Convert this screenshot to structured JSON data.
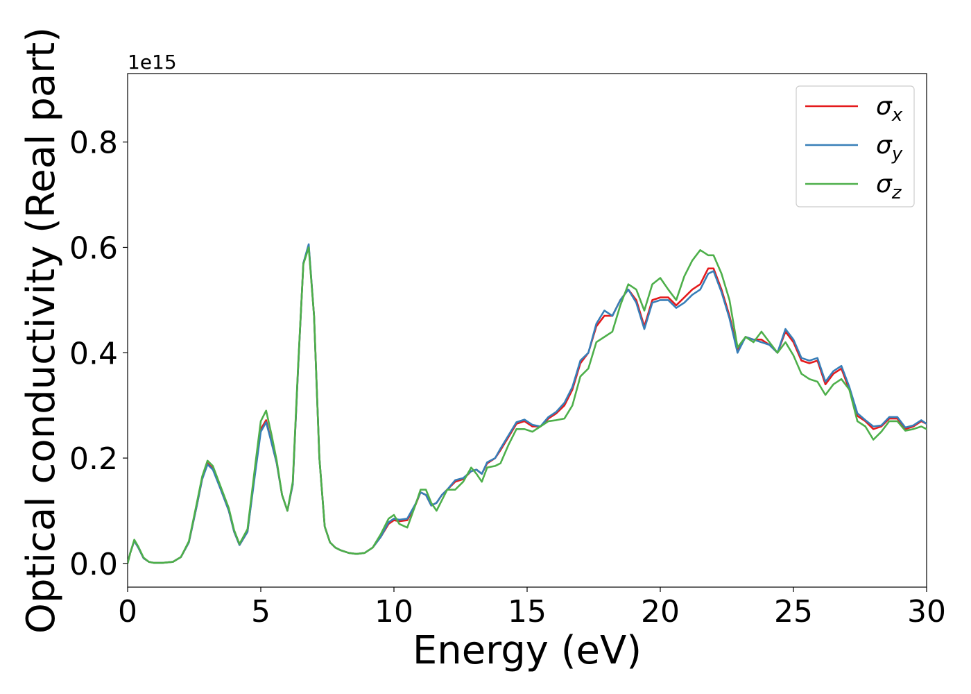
{
  "chart_data": {
    "type": "line",
    "xlabel": "Energy (eV)",
    "ylabel": "Optical conductivity (Real part)",
    "y_offset_label": "1e15",
    "xlim": [
      0,
      30
    ],
    "ylim": [
      -0.045,
      0.93
    ],
    "xticks": [
      0,
      5,
      10,
      15,
      20,
      25,
      30
    ],
    "xtick_labels": [
      "0",
      "5",
      "10",
      "15",
      "20",
      "25",
      "30"
    ],
    "yticks": [
      0.0,
      0.2,
      0.4,
      0.6,
      0.8
    ],
    "ytick_labels": [
      "0.0",
      "0.2",
      "0.4",
      "0.6",
      "0.8"
    ],
    "grid": false,
    "legend_position": "top-right",
    "series": [
      {
        "name": "σx",
        "symbol": "σ",
        "subscript": "x",
        "color": "#e41a1c",
        "x": [
          0,
          0.1,
          0.25,
          0.4,
          0.6,
          0.8,
          1.0,
          1.3,
          1.7,
          2.0,
          2.3,
          2.6,
          2.8,
          3.0,
          3.2,
          3.5,
          3.8,
          4.0,
          4.2,
          4.5,
          4.8,
          5.0,
          5.2,
          5.4,
          5.6,
          5.8,
          6.0,
          6.2,
          6.4,
          6.6,
          6.8,
          7.0,
          7.2,
          7.4,
          7.6,
          7.8,
          8.0,
          8.3,
          8.6,
          8.9,
          9.2,
          9.5,
          9.8,
          10.0,
          10.2,
          10.5,
          10.8,
          11.0,
          11.2,
          11.4,
          11.6,
          11.8,
          12.0,
          12.3,
          12.6,
          12.9,
          13.1,
          13.3,
          13.5,
          13.8,
          14.0,
          14.3,
          14.6,
          14.9,
          15.2,
          15.5,
          15.8,
          16.1,
          16.4,
          16.7,
          17.0,
          17.3,
          17.6,
          17.9,
          18.2,
          18.5,
          18.8,
          19.1,
          19.4,
          19.7,
          20.0,
          20.3,
          20.6,
          20.9,
          21.2,
          21.5,
          21.8,
          22.0,
          22.3,
          22.6,
          22.9,
          23.2,
          23.5,
          23.8,
          24.1,
          24.4,
          24.7,
          25.0,
          25.3,
          25.6,
          25.9,
          26.2,
          26.5,
          26.8,
          27.1,
          27.4,
          27.7,
          28.0,
          28.3,
          28.6,
          28.9,
          29.2,
          29.5,
          29.8,
          30.0
        ],
        "y": [
          0.0,
          0.02,
          0.043,
          0.03,
          0.01,
          0.003,
          0.001,
          0.001,
          0.003,
          0.012,
          0.04,
          0.11,
          0.16,
          0.19,
          0.18,
          0.14,
          0.1,
          0.06,
          0.035,
          0.06,
          0.18,
          0.255,
          0.272,
          0.23,
          0.19,
          0.13,
          0.1,
          0.15,
          0.37,
          0.57,
          0.603,
          0.47,
          0.2,
          0.07,
          0.04,
          0.03,
          0.025,
          0.02,
          0.018,
          0.02,
          0.03,
          0.05,
          0.075,
          0.082,
          0.08,
          0.082,
          0.11,
          0.135,
          0.13,
          0.11,
          0.115,
          0.13,
          0.14,
          0.155,
          0.16,
          0.175,
          0.178,
          0.17,
          0.19,
          0.2,
          0.215,
          0.24,
          0.265,
          0.27,
          0.26,
          0.26,
          0.275,
          0.285,
          0.3,
          0.33,
          0.38,
          0.4,
          0.45,
          0.47,
          0.47,
          0.5,
          0.52,
          0.5,
          0.45,
          0.5,
          0.505,
          0.505,
          0.49,
          0.505,
          0.52,
          0.53,
          0.56,
          0.56,
          0.52,
          0.47,
          0.405,
          0.43,
          0.425,
          0.425,
          0.415,
          0.4,
          0.44,
          0.42,
          0.385,
          0.38,
          0.385,
          0.34,
          0.36,
          0.37,
          0.33,
          0.28,
          0.27,
          0.255,
          0.26,
          0.275,
          0.275,
          0.255,
          0.26,
          0.27,
          0.265
        ]
      },
      {
        "name": "σy",
        "symbol": "σ",
        "subscript": "y",
        "color": "#377eb8",
        "x": [
          0,
          0.1,
          0.25,
          0.4,
          0.6,
          0.8,
          1.0,
          1.3,
          1.7,
          2.0,
          2.3,
          2.6,
          2.8,
          3.0,
          3.2,
          3.5,
          3.8,
          4.0,
          4.2,
          4.5,
          4.8,
          5.0,
          5.2,
          5.4,
          5.6,
          5.8,
          6.0,
          6.2,
          6.4,
          6.6,
          6.8,
          7.0,
          7.2,
          7.4,
          7.6,
          7.8,
          8.0,
          8.3,
          8.6,
          8.9,
          9.2,
          9.5,
          9.8,
          10.0,
          10.2,
          10.5,
          10.8,
          11.0,
          11.2,
          11.4,
          11.6,
          11.8,
          12.0,
          12.3,
          12.6,
          12.9,
          13.1,
          13.3,
          13.5,
          13.8,
          14.0,
          14.3,
          14.6,
          14.9,
          15.2,
          15.5,
          15.8,
          16.1,
          16.4,
          16.7,
          17.0,
          17.3,
          17.6,
          17.9,
          18.2,
          18.5,
          18.8,
          19.1,
          19.4,
          19.7,
          20.0,
          20.3,
          20.6,
          20.9,
          21.2,
          21.5,
          21.8,
          22.0,
          22.3,
          22.6,
          22.9,
          23.2,
          23.5,
          23.8,
          24.1,
          24.4,
          24.7,
          25.0,
          25.3,
          25.6,
          25.9,
          26.2,
          26.5,
          26.8,
          27.1,
          27.4,
          27.7,
          28.0,
          28.3,
          28.6,
          28.9,
          29.2,
          29.5,
          29.8,
          30.0
        ],
        "y": [
          0.0,
          0.02,
          0.043,
          0.03,
          0.01,
          0.003,
          0.001,
          0.001,
          0.003,
          0.012,
          0.04,
          0.11,
          0.16,
          0.188,
          0.178,
          0.14,
          0.1,
          0.06,
          0.035,
          0.06,
          0.175,
          0.25,
          0.268,
          0.23,
          0.19,
          0.13,
          0.1,
          0.15,
          0.37,
          0.57,
          0.606,
          0.47,
          0.2,
          0.07,
          0.04,
          0.03,
          0.025,
          0.02,
          0.018,
          0.02,
          0.03,
          0.05,
          0.078,
          0.085,
          0.083,
          0.085,
          0.112,
          0.135,
          0.13,
          0.11,
          0.115,
          0.13,
          0.14,
          0.158,
          0.162,
          0.175,
          0.178,
          0.17,
          0.192,
          0.2,
          0.218,
          0.243,
          0.268,
          0.273,
          0.263,
          0.26,
          0.278,
          0.288,
          0.305,
          0.335,
          0.385,
          0.4,
          0.455,
          0.48,
          0.47,
          0.5,
          0.52,
          0.495,
          0.445,
          0.495,
          0.5,
          0.5,
          0.485,
          0.495,
          0.51,
          0.52,
          0.55,
          0.555,
          0.515,
          0.465,
          0.4,
          0.43,
          0.425,
          0.42,
          0.415,
          0.4,
          0.445,
          0.425,
          0.39,
          0.385,
          0.39,
          0.345,
          0.365,
          0.375,
          0.335,
          0.285,
          0.272,
          0.26,
          0.262,
          0.278,
          0.278,
          0.258,
          0.262,
          0.272,
          0.265
        ]
      },
      {
        "name": "σz",
        "symbol": "σ",
        "subscript": "z",
        "color": "#4daf4a",
        "x": [
          0,
          0.1,
          0.25,
          0.4,
          0.6,
          0.8,
          1.0,
          1.3,
          1.7,
          2.0,
          2.3,
          2.6,
          2.8,
          3.0,
          3.2,
          3.5,
          3.8,
          4.0,
          4.2,
          4.5,
          4.8,
          5.0,
          5.2,
          5.4,
          5.6,
          5.8,
          6.0,
          6.2,
          6.4,
          6.6,
          6.8,
          7.0,
          7.2,
          7.4,
          7.6,
          7.8,
          8.0,
          8.3,
          8.6,
          8.9,
          9.2,
          9.5,
          9.8,
          10.0,
          10.2,
          10.5,
          10.8,
          11.0,
          11.2,
          11.4,
          11.6,
          11.8,
          12.0,
          12.3,
          12.6,
          12.9,
          13.1,
          13.3,
          13.5,
          13.8,
          14.0,
          14.3,
          14.6,
          14.9,
          15.2,
          15.5,
          15.8,
          16.1,
          16.4,
          16.7,
          17.0,
          17.3,
          17.6,
          17.9,
          18.2,
          18.5,
          18.8,
          19.1,
          19.4,
          19.7,
          20.0,
          20.3,
          20.6,
          20.9,
          21.2,
          21.5,
          21.8,
          22.0,
          22.3,
          22.6,
          22.9,
          23.2,
          23.5,
          23.8,
          24.1,
          24.4,
          24.7,
          25.0,
          25.3,
          25.6,
          25.9,
          26.2,
          26.5,
          26.8,
          27.1,
          27.4,
          27.7,
          28.0,
          28.3,
          28.6,
          28.9,
          29.2,
          29.5,
          29.8,
          30.0
        ],
        "y": [
          0.0,
          0.02,
          0.045,
          0.032,
          0.011,
          0.003,
          0.001,
          0.001,
          0.003,
          0.012,
          0.042,
          0.115,
          0.165,
          0.195,
          0.185,
          0.145,
          0.105,
          0.063,
          0.037,
          0.065,
          0.19,
          0.27,
          0.29,
          0.245,
          0.195,
          0.13,
          0.1,
          0.155,
          0.375,
          0.568,
          0.6,
          0.47,
          0.2,
          0.07,
          0.04,
          0.03,
          0.025,
          0.02,
          0.018,
          0.02,
          0.03,
          0.055,
          0.085,
          0.092,
          0.075,
          0.068,
          0.11,
          0.14,
          0.14,
          0.115,
          0.1,
          0.12,
          0.14,
          0.14,
          0.155,
          0.182,
          0.17,
          0.155,
          0.182,
          0.185,
          0.19,
          0.225,
          0.255,
          0.255,
          0.25,
          0.26,
          0.27,
          0.272,
          0.275,
          0.3,
          0.355,
          0.37,
          0.42,
          0.43,
          0.44,
          0.49,
          0.53,
          0.52,
          0.48,
          0.53,
          0.542,
          0.52,
          0.5,
          0.545,
          0.575,
          0.595,
          0.585,
          0.585,
          0.55,
          0.5,
          0.41,
          0.43,
          0.42,
          0.44,
          0.42,
          0.4,
          0.42,
          0.395,
          0.36,
          0.35,
          0.345,
          0.32,
          0.34,
          0.35,
          0.33,
          0.27,
          0.26,
          0.235,
          0.25,
          0.27,
          0.27,
          0.252,
          0.255,
          0.26,
          0.255
        ]
      }
    ]
  }
}
